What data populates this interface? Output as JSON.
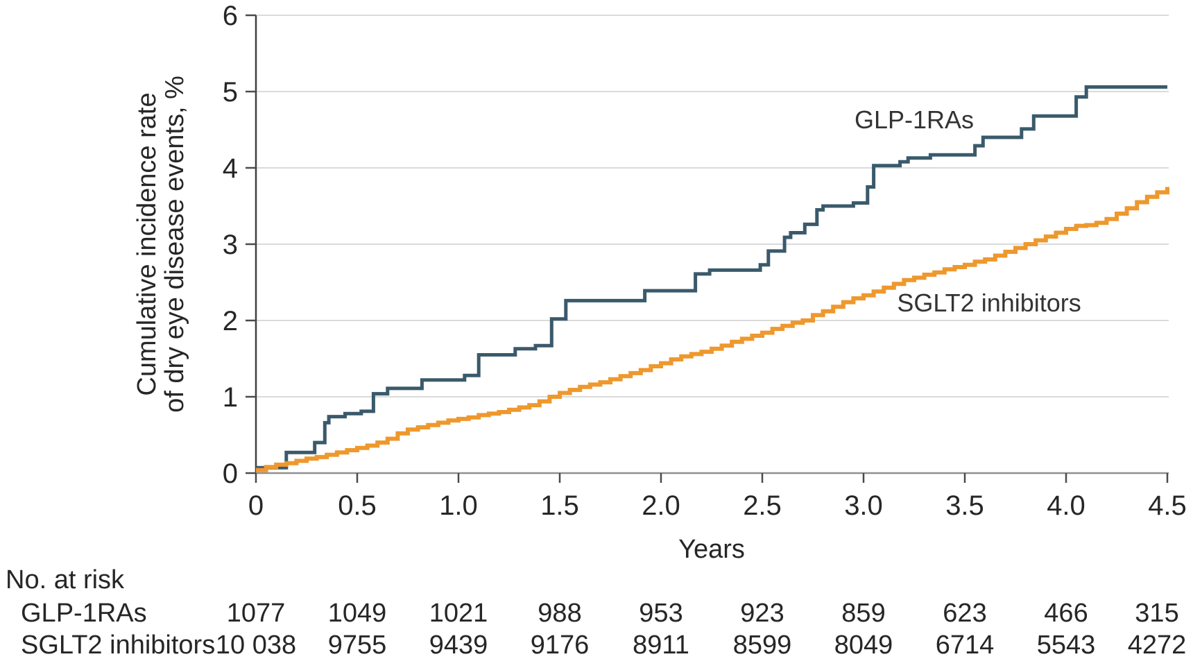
{
  "chart_data": {
    "type": "line",
    "subtype": "step-cumulative-incidence",
    "title": "",
    "xlabel": "Years",
    "ylabel": "Cumulative incidence rate of dry eye disease events, %",
    "ylabel_lines": [
      "Cumulative incidence rate",
      "of dry eye disease events, %"
    ],
    "xlim": [
      0,
      4.5
    ],
    "ylim": [
      0,
      6
    ],
    "xticks": {
      "values": [
        0,
        0.5,
        1.0,
        1.5,
        2.0,
        2.5,
        3.0,
        3.5,
        4.0,
        4.5
      ],
      "labels": [
        "0",
        "0.5",
        "1.0",
        "1.5",
        "2.0",
        "2.5",
        "3.0",
        "3.5",
        "4.0",
        "4.5"
      ]
    },
    "yticks": {
      "values": [
        0,
        1,
        2,
        3,
        4,
        5,
        6
      ],
      "labels": [
        "0",
        "1",
        "2",
        "3",
        "4",
        "5",
        "6"
      ]
    },
    "grid": "horizontal",
    "legend_position": "inline-labels",
    "colors": {
      "grid": "#dadada",
      "y_axis": "#3f3f3f",
      "x_axis": "#8f8f8f",
      "tick": "#4a4a4a",
      "text": "#262626"
    },
    "series": [
      {
        "name": "GLP-1RAs",
        "color": "#3a5a6b",
        "stroke_width": 5,
        "label": {
          "text": "GLP-1RAs",
          "t": 3.25,
          "v": 4.52
        },
        "points": [
          [
            0.0,
            0.07
          ],
          [
            0.15,
            0.27
          ],
          [
            0.29,
            0.4
          ],
          [
            0.34,
            0.66
          ],
          [
            0.36,
            0.74
          ],
          [
            0.44,
            0.78
          ],
          [
            0.52,
            0.81
          ],
          [
            0.58,
            1.04
          ],
          [
            0.65,
            1.11
          ],
          [
            0.82,
            1.22
          ],
          [
            1.03,
            1.28
          ],
          [
            1.1,
            1.55
          ],
          [
            1.28,
            1.63
          ],
          [
            1.38,
            1.67
          ],
          [
            1.46,
            2.02
          ],
          [
            1.53,
            2.26
          ],
          [
            1.92,
            2.39
          ],
          [
            2.17,
            2.61
          ],
          [
            2.24,
            2.66
          ],
          [
            2.49,
            2.73
          ],
          [
            2.53,
            2.91
          ],
          [
            2.61,
            3.09
          ],
          [
            2.64,
            3.15
          ],
          [
            2.71,
            3.26
          ],
          [
            2.77,
            3.45
          ],
          [
            2.8,
            3.5
          ],
          [
            2.95,
            3.54
          ],
          [
            3.02,
            3.75
          ],
          [
            3.05,
            4.03
          ],
          [
            3.18,
            4.08
          ],
          [
            3.22,
            4.13
          ],
          [
            3.33,
            4.17
          ],
          [
            3.55,
            4.29
          ],
          [
            3.59,
            4.4
          ],
          [
            3.78,
            4.51
          ],
          [
            3.84,
            4.68
          ],
          [
            4.05,
            4.93
          ],
          [
            4.1,
            5.06
          ],
          [
            4.5,
            5.06
          ]
        ]
      },
      {
        "name": "SGLT2 inhibitors",
        "color": "#ee982d",
        "stroke_width": 6,
        "label": {
          "text": "SGLT2 inhibitors",
          "t": 3.62,
          "v": 2.12
        },
        "points": [
          [
            0.0,
            0.04
          ],
          [
            0.05,
            0.08
          ],
          [
            0.1,
            0.11
          ],
          [
            0.15,
            0.13
          ],
          [
            0.2,
            0.16
          ],
          [
            0.25,
            0.19
          ],
          [
            0.3,
            0.21
          ],
          [
            0.35,
            0.24
          ],
          [
            0.4,
            0.27
          ],
          [
            0.45,
            0.3
          ],
          [
            0.5,
            0.33
          ],
          [
            0.55,
            0.36
          ],
          [
            0.6,
            0.4
          ],
          [
            0.65,
            0.45
          ],
          [
            0.7,
            0.52
          ],
          [
            0.75,
            0.57
          ],
          [
            0.8,
            0.6
          ],
          [
            0.85,
            0.63
          ],
          [
            0.9,
            0.66
          ],
          [
            0.95,
            0.69
          ],
          [
            1.0,
            0.71
          ],
          [
            1.05,
            0.73
          ],
          [
            1.1,
            0.76
          ],
          [
            1.15,
            0.78
          ],
          [
            1.2,
            0.8
          ],
          [
            1.25,
            0.83
          ],
          [
            1.3,
            0.86
          ],
          [
            1.35,
            0.89
          ],
          [
            1.4,
            0.94
          ],
          [
            1.45,
            1.0
          ],
          [
            1.5,
            1.05
          ],
          [
            1.55,
            1.09
          ],
          [
            1.6,
            1.13
          ],
          [
            1.65,
            1.16
          ],
          [
            1.7,
            1.19
          ],
          [
            1.75,
            1.23
          ],
          [
            1.8,
            1.27
          ],
          [
            1.85,
            1.31
          ],
          [
            1.9,
            1.35
          ],
          [
            1.95,
            1.4
          ],
          [
            2.0,
            1.44
          ],
          [
            2.05,
            1.49
          ],
          [
            2.1,
            1.53
          ],
          [
            2.15,
            1.56
          ],
          [
            2.2,
            1.59
          ],
          [
            2.25,
            1.63
          ],
          [
            2.3,
            1.67
          ],
          [
            2.35,
            1.72
          ],
          [
            2.4,
            1.76
          ],
          [
            2.45,
            1.8
          ],
          [
            2.5,
            1.84
          ],
          [
            2.55,
            1.89
          ],
          [
            2.6,
            1.93
          ],
          [
            2.65,
            1.97
          ],
          [
            2.7,
            2.0
          ],
          [
            2.75,
            2.07
          ],
          [
            2.8,
            2.12
          ],
          [
            2.85,
            2.18
          ],
          [
            2.9,
            2.24
          ],
          [
            2.95,
            2.29
          ],
          [
            3.0,
            2.33
          ],
          [
            3.05,
            2.38
          ],
          [
            3.1,
            2.43
          ],
          [
            3.15,
            2.48
          ],
          [
            3.2,
            2.53
          ],
          [
            3.25,
            2.56
          ],
          [
            3.3,
            2.6
          ],
          [
            3.35,
            2.63
          ],
          [
            3.4,
            2.67
          ],
          [
            3.45,
            2.7
          ],
          [
            3.5,
            2.73
          ],
          [
            3.55,
            2.77
          ],
          [
            3.6,
            2.8
          ],
          [
            3.65,
            2.85
          ],
          [
            3.7,
            2.9
          ],
          [
            3.75,
            2.95
          ],
          [
            3.8,
            3.0
          ],
          [
            3.85,
            3.05
          ],
          [
            3.9,
            3.1
          ],
          [
            3.95,
            3.15
          ],
          [
            4.0,
            3.2
          ],
          [
            4.05,
            3.24
          ],
          [
            4.1,
            3.25
          ],
          [
            4.15,
            3.28
          ],
          [
            4.2,
            3.33
          ],
          [
            4.25,
            3.4
          ],
          [
            4.3,
            3.47
          ],
          [
            4.35,
            3.55
          ],
          [
            4.4,
            3.62
          ],
          [
            4.45,
            3.68
          ],
          [
            4.5,
            3.75
          ]
        ]
      }
    ]
  },
  "risk_table": {
    "title": "No. at risk",
    "rows": [
      {
        "label": "GLP-1RAs",
        "values": [
          "1077",
          "1049",
          "1021",
          "988",
          "953",
          "923",
          "859",
          "623",
          "466",
          "315"
        ]
      },
      {
        "label": "SGLT2 inhibitors",
        "values": [
          "10 038",
          "9755",
          "9439",
          "9176",
          "8911",
          "8599",
          "8049",
          "6714",
          "5543",
          "4272"
        ]
      }
    ]
  }
}
